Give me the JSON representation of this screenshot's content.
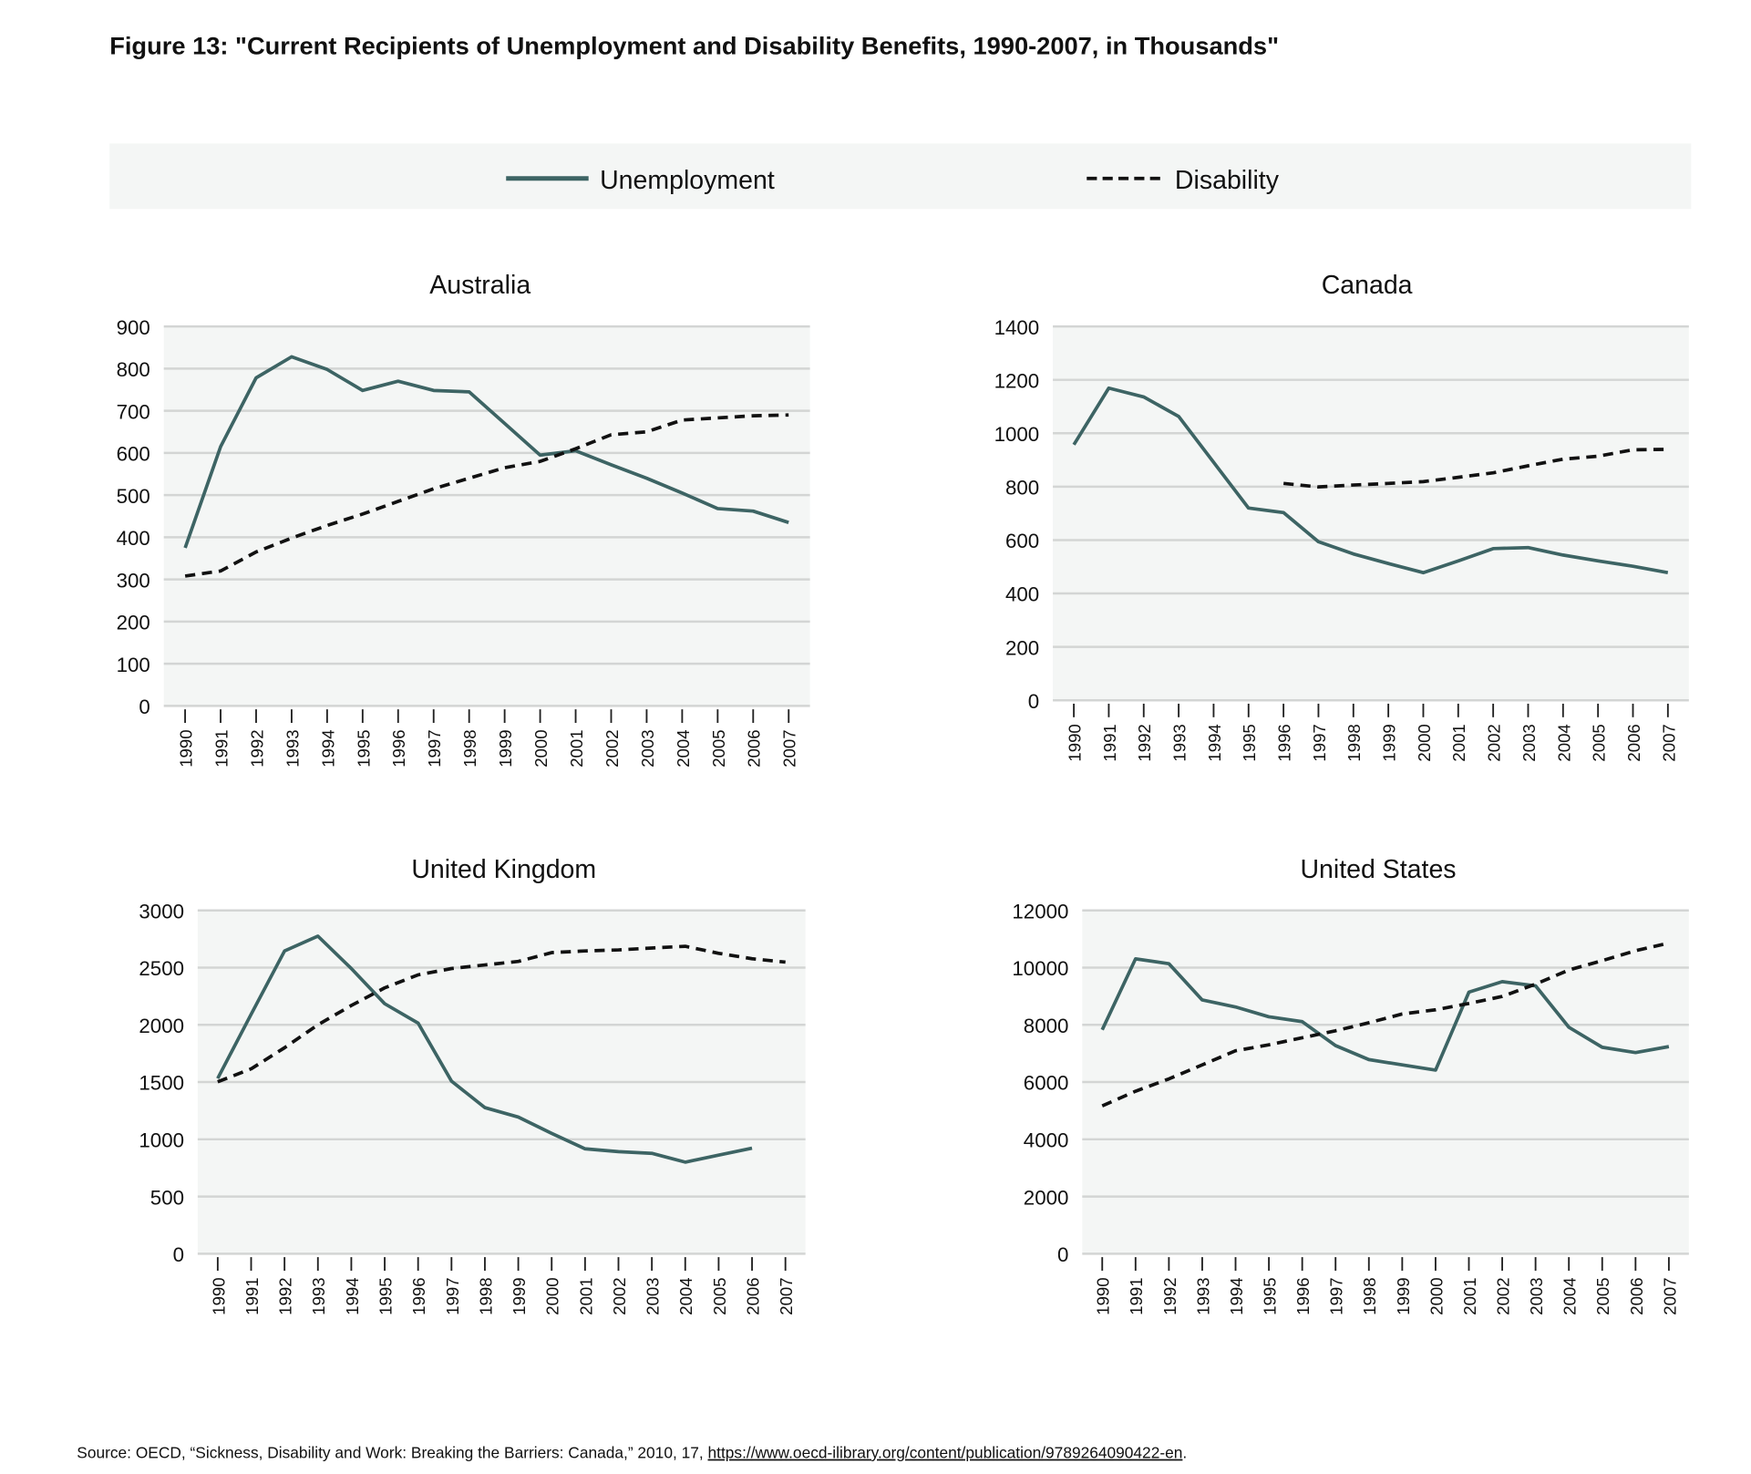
{
  "figure_title": "Figure 13: \"Current Recipients of Unemployment and Disability Benefits, 1990-2007, in Thousands\"",
  "legend": {
    "placement": "top",
    "items": [
      {
        "label": "Unemployment",
        "style": "solid",
        "color": "#3d6464"
      },
      {
        "label": "Disability",
        "style": "dashed",
        "color": "#111111"
      }
    ]
  },
  "source": {
    "text": "Source: OECD, “Sickness, Disability and Work: Breaking the Barriers: Canada,” 2010, 17, ",
    "link": "https://www.oecd-ilibrary.org/content/publication/9789264090422-en",
    "end": "."
  },
  "colors": {
    "plot_bg": "#f4f6f5",
    "grid": "#d3d5d4",
    "unemployment": "#3d6464",
    "disability": "#111111",
    "legend_bg": "#f4f6f5"
  },
  "chart_data": [
    {
      "type": "line",
      "title": "Australia",
      "grid": true,
      "categories": [
        "1990",
        "1991",
        "1992",
        "1993",
        "1994",
        "1995",
        "1996",
        "1997",
        "1998",
        "1999",
        "2000",
        "2001",
        "2002",
        "2003",
        "2004",
        "2005",
        "2006",
        "2007"
      ],
      "ylim": [
        0,
        900
      ],
      "yticks": [
        0,
        100,
        200,
        300,
        400,
        500,
        600,
        700,
        800,
        900
      ],
      "series": [
        {
          "name": "Unemployment",
          "values": [
            375,
            615,
            778,
            828,
            798,
            748,
            770,
            748,
            745,
            670,
            595,
            605,
            572,
            540,
            505,
            468,
            462,
            435
          ]
        },
        {
          "name": "Disability",
          "values": [
            308,
            320,
            365,
            398,
            428,
            455,
            485,
            515,
            540,
            565,
            580,
            610,
            643,
            650,
            678,
            683,
            688,
            690
          ]
        }
      ]
    },
    {
      "type": "line",
      "title": "Canada",
      "grid": true,
      "categories": [
        "1990",
        "1991",
        "1992",
        "1993",
        "1994",
        "1995",
        "1996",
        "1997",
        "1998",
        "1999",
        "2000",
        "2001",
        "2002",
        "2003",
        "2004",
        "2005",
        "2006",
        "2007"
      ],
      "ylim": [
        0,
        1400
      ],
      "yticks": [
        0,
        200,
        400,
        600,
        800,
        1000,
        1200,
        1400
      ],
      "series": [
        {
          "name": "Unemployment",
          "values": [
            957,
            1169,
            1136,
            1063,
            891,
            720,
            703,
            594,
            548,
            512,
            478,
            522,
            568,
            572,
            544,
            522,
            502,
            478
          ]
        },
        {
          "name": "Disability",
          "values": [
            null,
            null,
            null,
            null,
            null,
            null,
            812,
            799,
            806,
            812,
            819,
            835,
            852,
            878,
            903,
            914,
            938,
            940
          ]
        }
      ]
    },
    {
      "type": "line",
      "title": "United Kingdom",
      "grid": true,
      "categories": [
        "1990",
        "1991",
        "1992",
        "1993",
        "1994",
        "1995",
        "1996",
        "1997",
        "1998",
        "1999",
        "2000",
        "2001",
        "2002",
        "2003",
        "2004",
        "2005",
        "2006",
        "2007"
      ],
      "ylim": [
        0,
        3000
      ],
      "yticks": [
        0,
        500,
        1000,
        1500,
        2000,
        2500,
        3000
      ],
      "series": [
        {
          "name": "Unemployment",
          "values": [
            1532,
            2092,
            2646,
            2775,
            2492,
            2185,
            2015,
            1508,
            1277,
            1194,
            1052,
            917,
            892,
            877,
            800,
            862,
            923,
            null
          ]
        },
        {
          "name": "Disability",
          "values": [
            1502,
            1615,
            1800,
            2000,
            2169,
            2323,
            2437,
            2492,
            2523,
            2554,
            2631,
            2646,
            2655,
            2671,
            2686,
            2625,
            2578,
            2548
          ]
        }
      ]
    },
    {
      "type": "line",
      "title": "United States",
      "grid": true,
      "categories": [
        "1990",
        "1991",
        "1992",
        "1993",
        "1994",
        "1995",
        "1996",
        "1997",
        "1998",
        "1999",
        "2000",
        "2001",
        "2002",
        "2003",
        "2004",
        "2005",
        "2006",
        "2007"
      ],
      "ylim": [
        0,
        12000
      ],
      "yticks": [
        0,
        2000,
        4000,
        6000,
        8000,
        10000,
        12000
      ],
      "series": [
        {
          "name": "Unemployment",
          "values": [
            7828,
            10307,
            10135,
            8871,
            8626,
            8282,
            8110,
            7276,
            6785,
            6601,
            6417,
            9141,
            9509,
            9362,
            7914,
            7215,
            7030,
            7239
          ]
        },
        {
          "name": "Disability",
          "values": [
            5166,
            5681,
            6110,
            6601,
            7092,
            7301,
            7546,
            7791,
            8074,
            8380,
            8528,
            8748,
            8994,
            9423,
            9914,
            10245,
            10589,
            10859
          ]
        }
      ]
    }
  ]
}
